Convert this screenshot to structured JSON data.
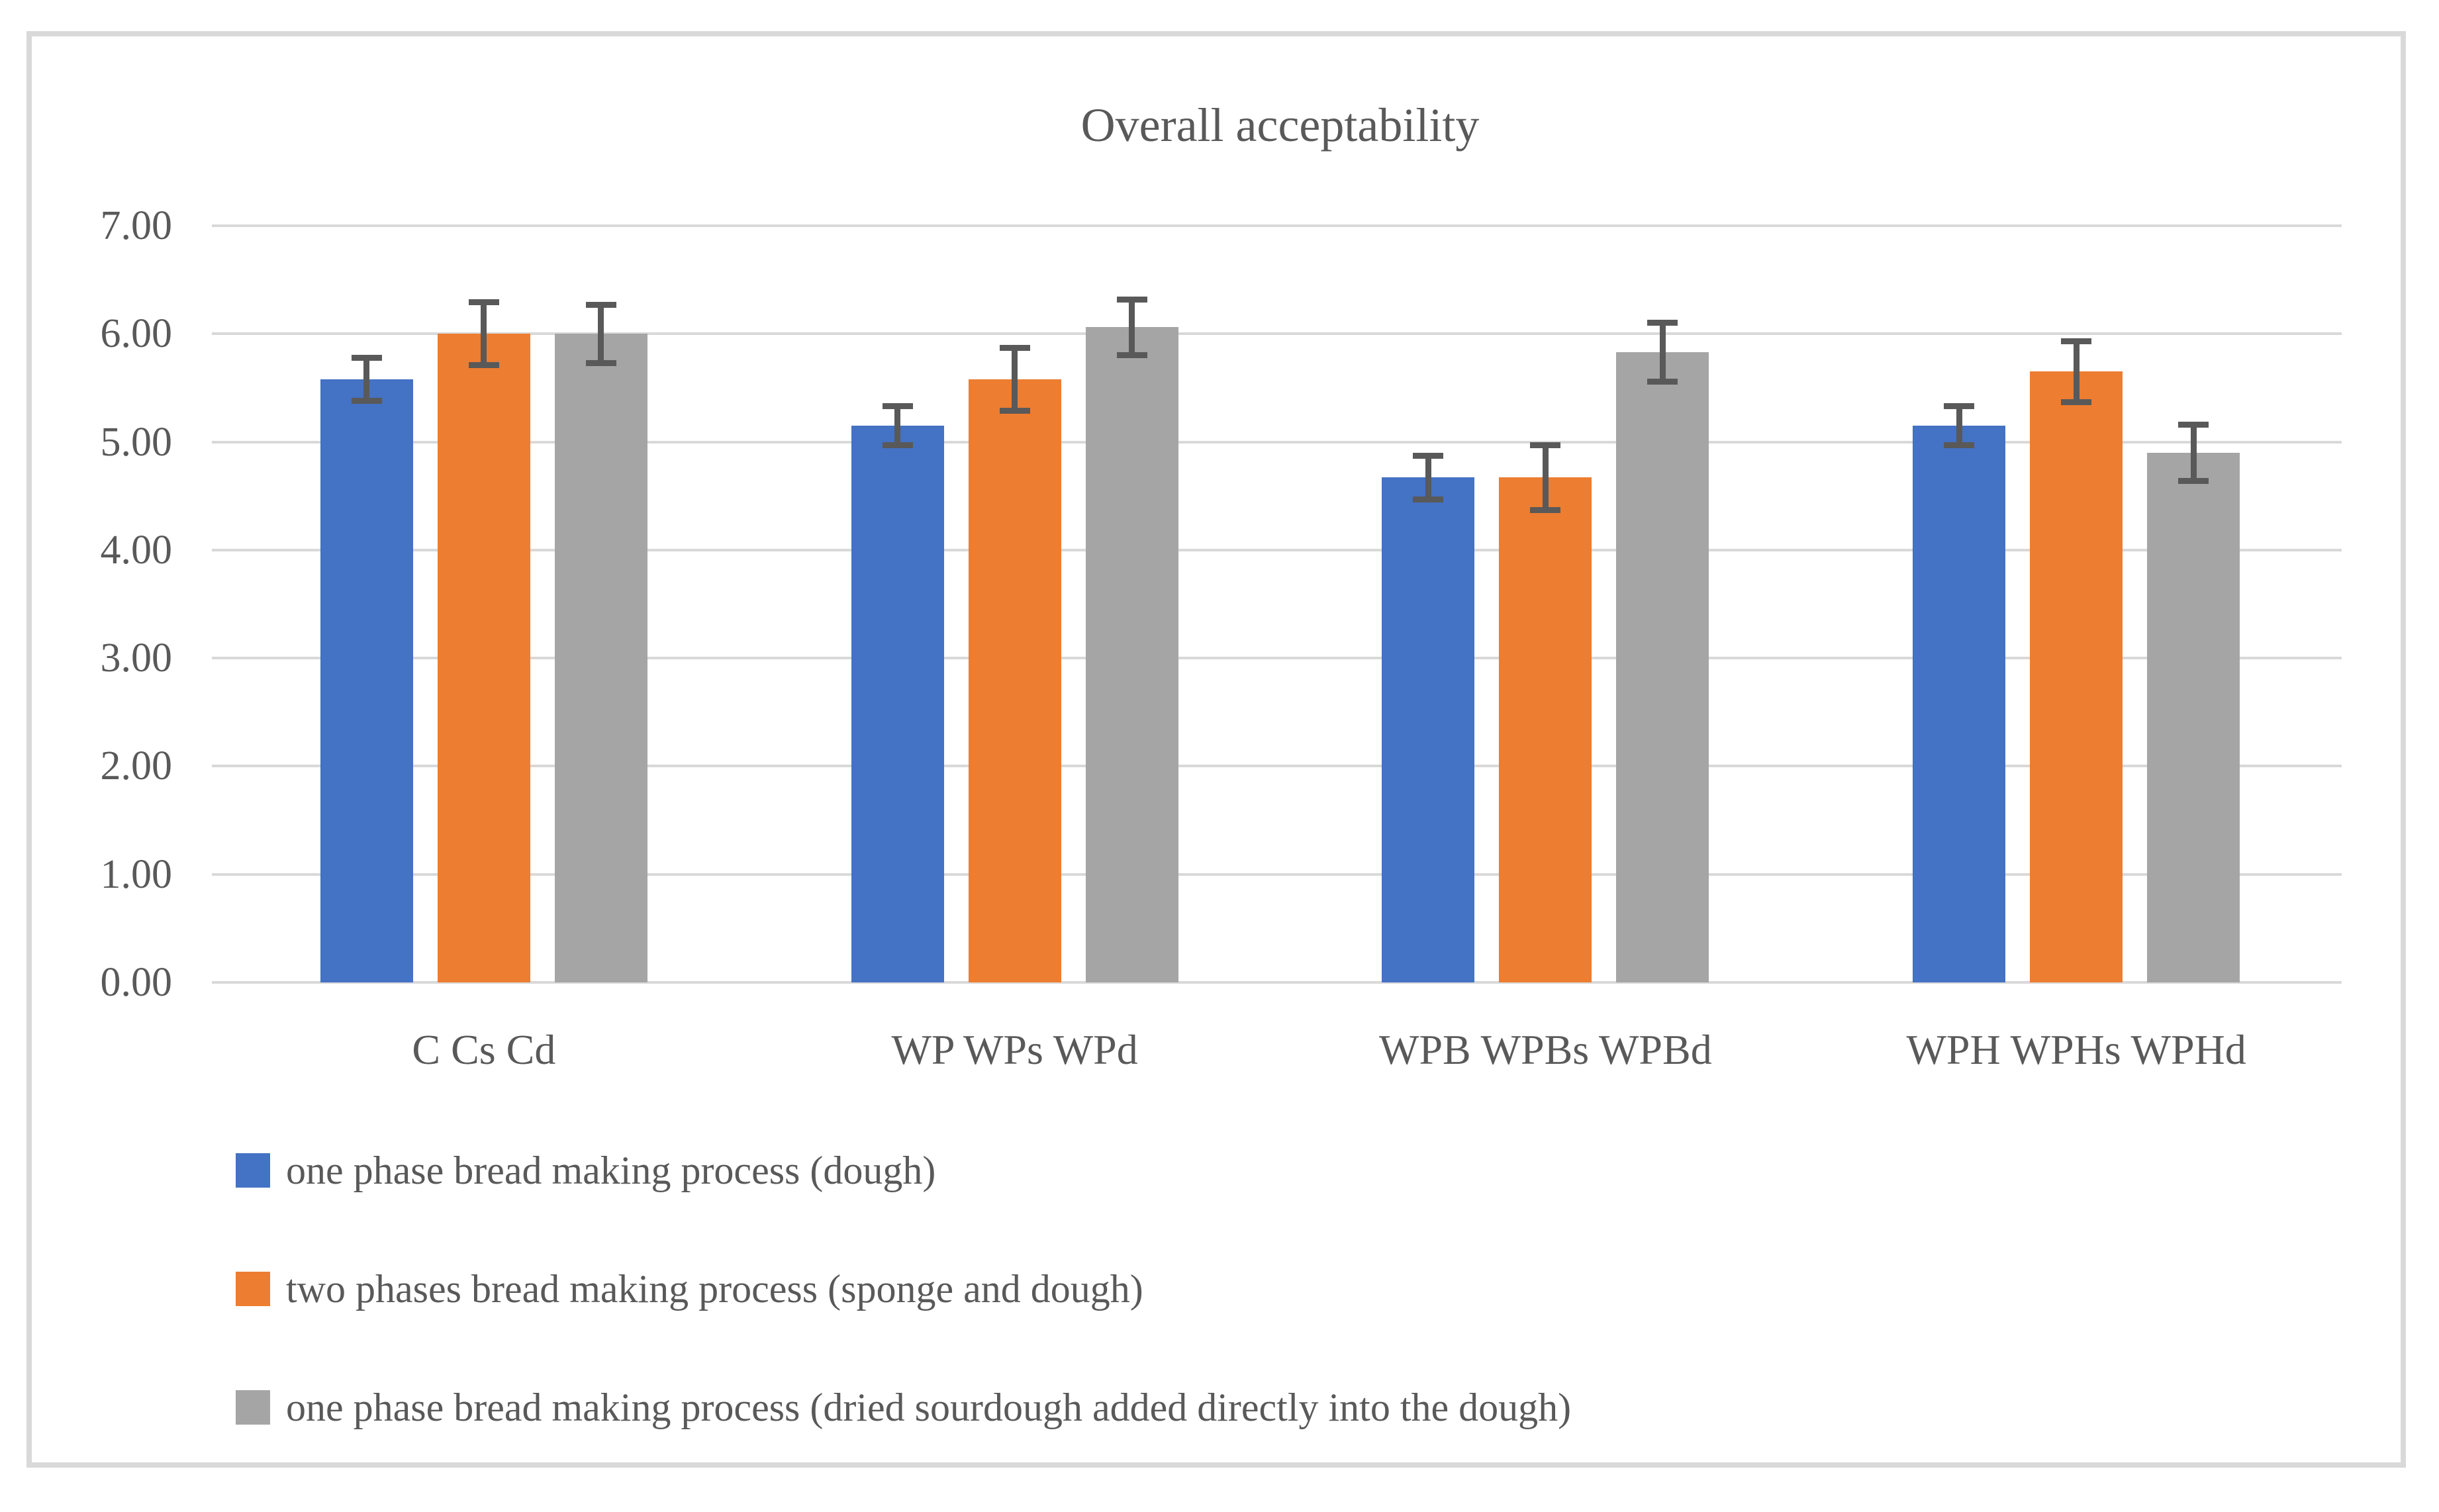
{
  "chart_data": {
    "type": "bar",
    "title": "Overall acceptability",
    "categories": [
      "C Cs Cd",
      "WP WPs WPd",
      "WPB WPBs WPBd",
      "WPH WPHs WPHd"
    ],
    "series": [
      {
        "name": "one phase bread making process (dough)",
        "color": "#4472C4",
        "values": [
          5.58,
          5.15,
          4.67,
          5.15
        ],
        "errors": [
          0.2,
          0.18,
          0.2,
          0.18
        ]
      },
      {
        "name": "two phases bread making process (sponge and dough)",
        "color": "#ED7D31",
        "values": [
          6.0,
          5.58,
          4.67,
          5.65
        ],
        "errors": [
          0.29,
          0.29,
          0.3,
          0.28
        ]
      },
      {
        "name": "one phase bread making process (dried sourdough added directly into the dough)",
        "color": "#A5A5A5",
        "values": [
          6.0,
          6.06,
          5.83,
          4.9
        ],
        "errors": [
          0.27,
          0.26,
          0.27,
          0.26
        ]
      }
    ],
    "y_ticks": [
      "7.00",
      "6.00",
      "5.00",
      "4.00",
      "3.00",
      "2.00",
      "1.00",
      "0.00"
    ],
    "ylim": [
      0,
      7
    ],
    "grid": true,
    "legend_position": "bottom-left",
    "gridline_color": "#D9D9D9",
    "error_bar_color": "#595959",
    "text_color": "#595959",
    "frame_color": "#D9D9D9"
  }
}
